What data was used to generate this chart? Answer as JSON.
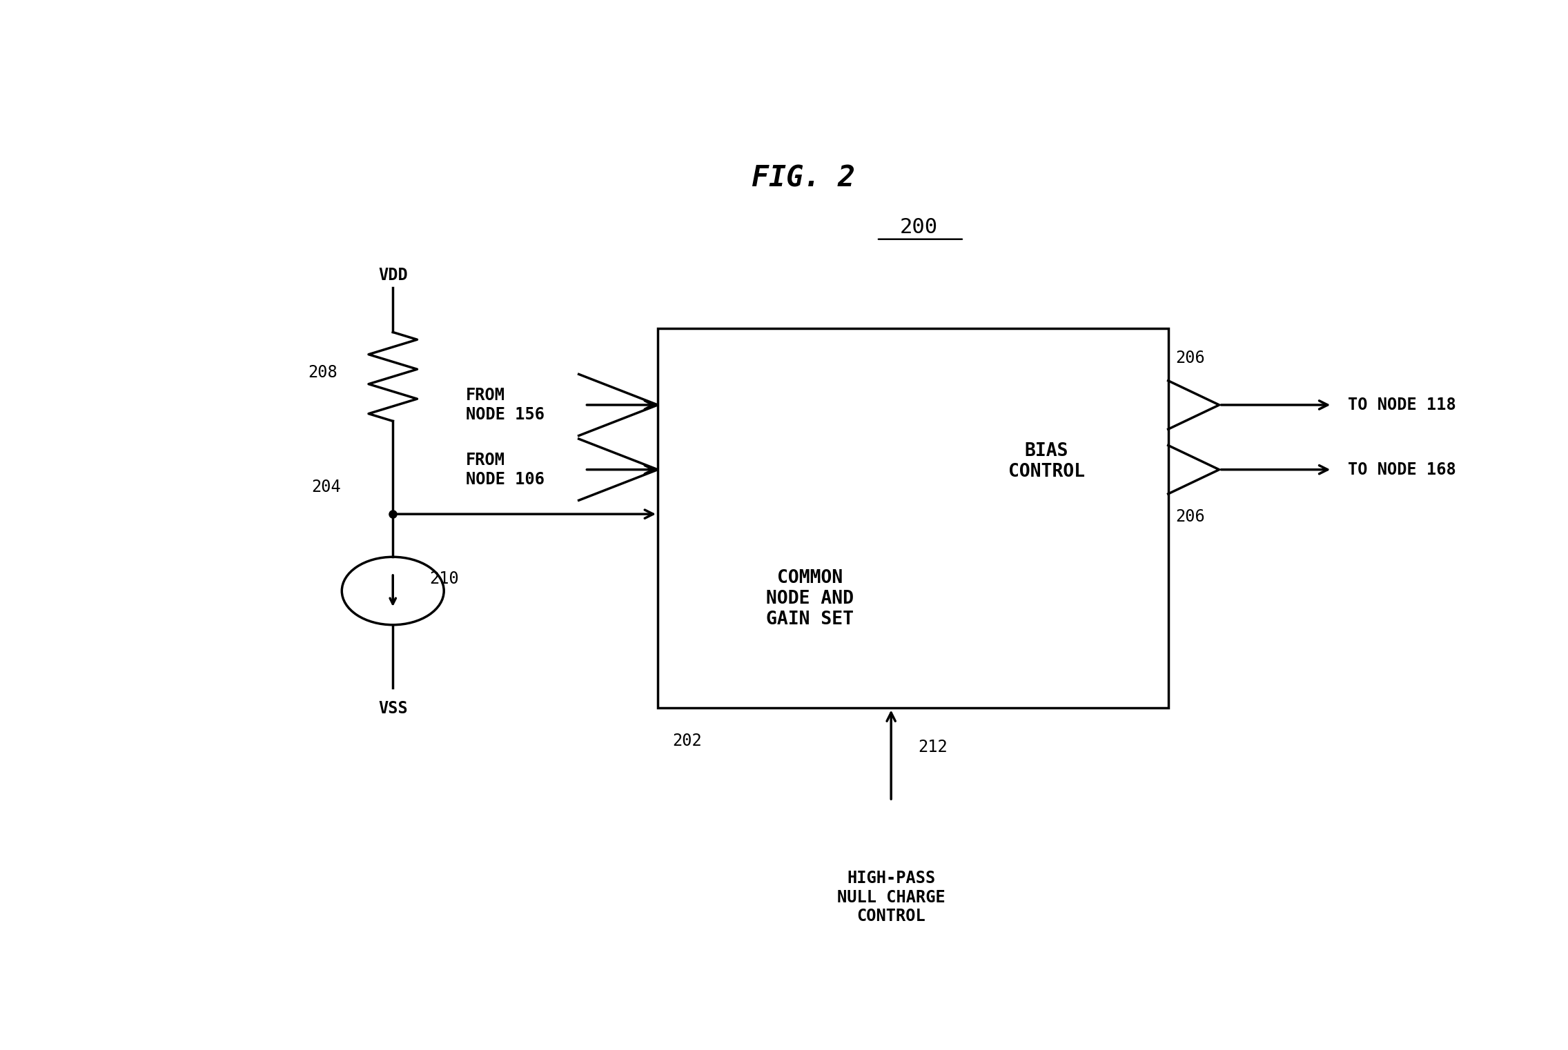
{
  "title": "FIG. 2",
  "label_200": "200",
  "bg_color": "#ffffff",
  "line_color": "#000000",
  "font_color": "#000000",
  "fig_width": 22.72,
  "fig_height": 15.22,
  "bias_control_text": "BIAS\nCONTROL",
  "common_node_text": "COMMON\nNODE AND\nGAIN SET",
  "from_156_text": "FROM\nNODE 156",
  "from_106_text": "FROM\nNODE 106",
  "to_118_text": "TO NODE 118",
  "to_168_text": "TO NODE 168",
  "vdd_text": "VDD",
  "vss_text": "VSS",
  "label_202": "202",
  "label_204": "204",
  "label_206_top": "206",
  "label_206_bot": "206",
  "label_208": "208",
  "label_210": "210",
  "label_212": "212",
  "hp_text": "HIGH-PASS\nNULL CHARGE\nCONTROL",
  "bx0": 0.38,
  "bx1": 0.8,
  "by0": 0.28,
  "by1": 0.75
}
